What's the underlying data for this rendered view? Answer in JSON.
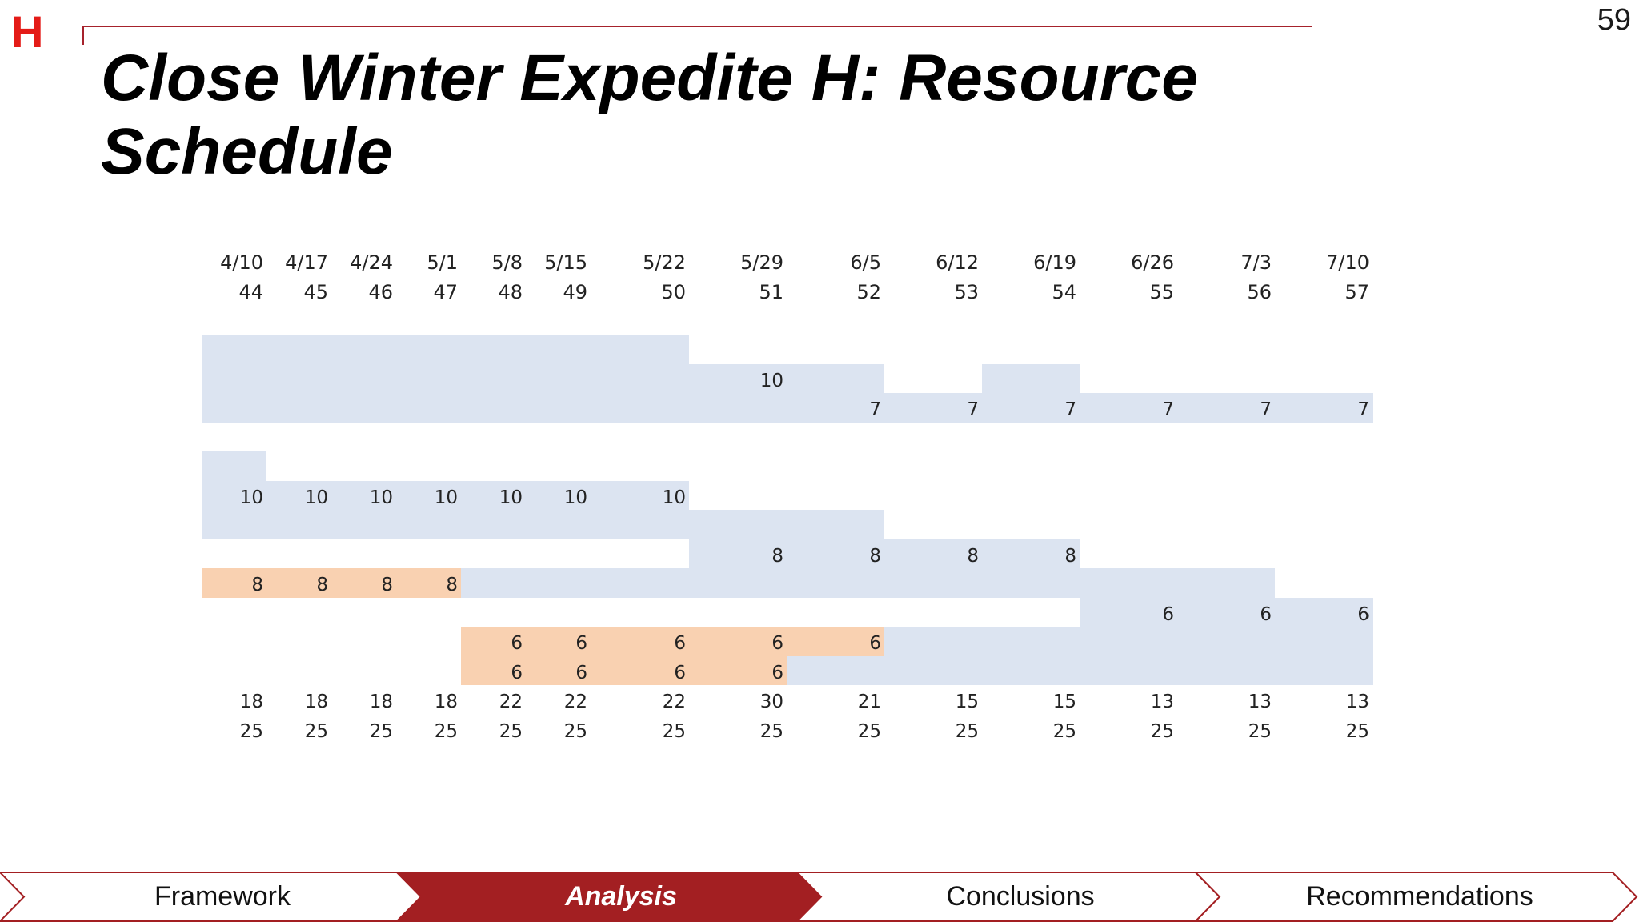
{
  "logo": "H",
  "page_number": "59",
  "title": "Close Winter Expedite H: Resource Schedule",
  "schedule": {
    "dates": [
      "4/10",
      "4/17",
      "4/24",
      "5/1",
      "5/8",
      "5/15",
      "5/22",
      "5/29",
      "6/5",
      "6/12",
      "6/19",
      "6/26",
      "7/3",
      "7/10"
    ],
    "weeks": [
      "44",
      "45",
      "46",
      "47",
      "48",
      "49",
      "50",
      "51",
      "52",
      "53",
      "54",
      "55",
      "56",
      "57"
    ],
    "rows": [
      {
        "fill": [
          1,
          1,
          1,
          1,
          1,
          1,
          1,
          0,
          0,
          0,
          0,
          0,
          0,
          0
        ],
        "labels": [
          "",
          "",
          "",
          "",
          "",
          "",
          "",
          "",
          "",
          "",
          "",
          "",
          "",
          ""
        ]
      },
      {
        "fill": [
          1,
          1,
          1,
          1,
          1,
          1,
          1,
          1,
          1,
          0,
          1,
          0,
          0,
          0
        ],
        "labels": [
          "",
          "",
          "",
          "",
          "",
          "",
          "",
          "10",
          "",
          "",
          "",
          "",
          "",
          ""
        ]
      },
      {
        "fill": [
          1,
          1,
          1,
          1,
          1,
          1,
          1,
          1,
          1,
          1,
          1,
          1,
          1,
          1
        ],
        "labels": [
          "",
          "",
          "",
          "",
          "",
          "",
          "",
          "",
          "7",
          "7",
          "7",
          "7",
          "7",
          "7"
        ]
      },
      {
        "fill": [
          0,
          0,
          0,
          0,
          0,
          0,
          0,
          0,
          0,
          0,
          0,
          0,
          0,
          0
        ],
        "labels": [
          "",
          "",
          "",
          "",
          "",
          "",
          "",
          "",
          "",
          "",
          "",
          "",
          "",
          ""
        ]
      },
      {
        "fill": [
          1,
          0,
          0,
          0,
          0,
          0,
          0,
          0,
          0,
          0,
          0,
          0,
          0,
          0
        ],
        "labels": [
          "",
          "",
          "",
          "",
          "",
          "",
          "",
          "",
          "",
          "",
          "",
          "",
          "",
          ""
        ]
      },
      {
        "fill": [
          1,
          1,
          1,
          1,
          1,
          1,
          1,
          0,
          0,
          0,
          0,
          0,
          0,
          0
        ],
        "labels": [
          "10",
          "10",
          "10",
          "10",
          "10",
          "10",
          "10",
          "",
          "",
          "",
          "",
          "",
          "",
          ""
        ]
      },
      {
        "fill": [
          1,
          1,
          1,
          1,
          1,
          1,
          1,
          1,
          1,
          0,
          0,
          0,
          0,
          0
        ],
        "labels": [
          "",
          "",
          "",
          "",
          "",
          "",
          "",
          "",
          "",
          "",
          "",
          "",
          "",
          ""
        ]
      },
      {
        "fill": [
          0,
          0,
          0,
          0,
          0,
          0,
          0,
          1,
          1,
          1,
          1,
          0,
          0,
          0
        ],
        "labels": [
          "",
          "",
          "",
          "",
          "",
          "",
          "",
          "8",
          "8",
          "8",
          "8",
          "",
          "",
          ""
        ]
      },
      {
        "fill": [
          2,
          2,
          2,
          2,
          1,
          1,
          1,
          1,
          1,
          1,
          1,
          1,
          1,
          0
        ],
        "labels": [
          "8",
          "8",
          "8",
          "8",
          "",
          "",
          "",
          "",
          "",
          "",
          "",
          "",
          "",
          ""
        ]
      },
      {
        "fill": [
          0,
          0,
          0,
          0,
          0,
          0,
          0,
          0,
          0,
          0,
          0,
          1,
          1,
          1
        ],
        "labels": [
          "",
          "",
          "",
          "",
          "",
          "",
          "",
          "",
          "",
          "",
          "",
          "6",
          "6",
          "6"
        ]
      },
      {
        "fill": [
          0,
          0,
          0,
          0,
          2,
          2,
          2,
          2,
          2,
          1,
          1,
          1,
          1,
          1
        ],
        "labels": [
          "",
          "",
          "",
          "",
          "6",
          "6",
          "6",
          "6",
          "6",
          "",
          "",
          "",
          "",
          ""
        ]
      },
      {
        "fill": [
          0,
          0,
          0,
          0,
          2,
          2,
          2,
          2,
          1,
          1,
          1,
          1,
          1,
          1
        ],
        "labels": [
          "",
          "",
          "",
          "",
          "6",
          "6",
          "6",
          "6",
          "",
          "",
          "",
          "",
          "",
          ""
        ]
      }
    ],
    "totals": [
      "18",
      "18",
      "18",
      "18",
      "22",
      "22",
      "22",
      "30",
      "21",
      "15",
      "15",
      "13",
      "13",
      "13"
    ],
    "capacity": [
      "25",
      "25",
      "25",
      "25",
      "25",
      "25",
      "25",
      "25",
      "25",
      "25",
      "25",
      "25",
      "25",
      "25"
    ],
    "colors": {
      "blue": "#dce4f1",
      "orange": "#f9d1b1"
    }
  },
  "nav": {
    "items": [
      "Framework",
      "Analysis",
      "Conclusions",
      "Recommendations"
    ],
    "active_index": 1,
    "accent": "#a31f22"
  }
}
